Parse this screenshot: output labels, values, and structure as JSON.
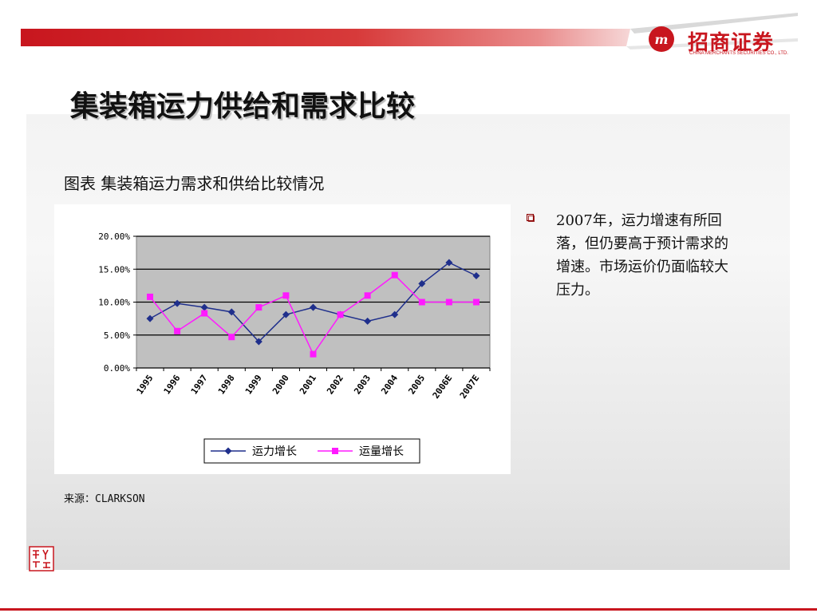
{
  "slide": {
    "title": "集装箱运力供给和需求比较",
    "figure_caption": "图表  集装箱运力需求和供给比较情况",
    "bullet_text": "2007年，运力增速有所回落，但仍要高于预计需求的增速。市场运价仍面临较大压力。",
    "source": "来源：CLARKSON"
  },
  "brand": {
    "name": "招商证券",
    "subtitle": "CHINA MERCHANTS SECURITIES CO., LTD.",
    "logo_text": "m",
    "seal_text": "致行",
    "accent_color": "#c8161e"
  },
  "chart_data": {
    "type": "line",
    "categories": [
      "1995",
      "1996",
      "1997",
      "1998",
      "1999",
      "2000",
      "2001",
      "2002",
      "2003",
      "2004",
      "2005",
      "2006E",
      "2007E"
    ],
    "series": [
      {
        "name": "运力增长",
        "color": "#1f2f8c",
        "marker": "diamond",
        "values": [
          7.5,
          9.8,
          9.2,
          8.5,
          4.0,
          8.1,
          9.2,
          8.1,
          7.1,
          8.1,
          12.8,
          16.0,
          14.0
        ]
      },
      {
        "name": "运量增长",
        "color": "#ff1aff",
        "marker": "square",
        "values": [
          10.8,
          5.6,
          8.3,
          4.7,
          9.2,
          11.0,
          2.1,
          8.1,
          11.0,
          14.1,
          10.0,
          10.0,
          10.0
        ]
      }
    ],
    "y_tick_labels": [
      "20.00%",
      "15.00%",
      "10.00%",
      "5.00%",
      "0.00%"
    ],
    "ylim": [
      0,
      20
    ],
    "y_unit": "%",
    "grid": true,
    "plot_background": "#c0c0c0",
    "legend_position": "bottom"
  }
}
